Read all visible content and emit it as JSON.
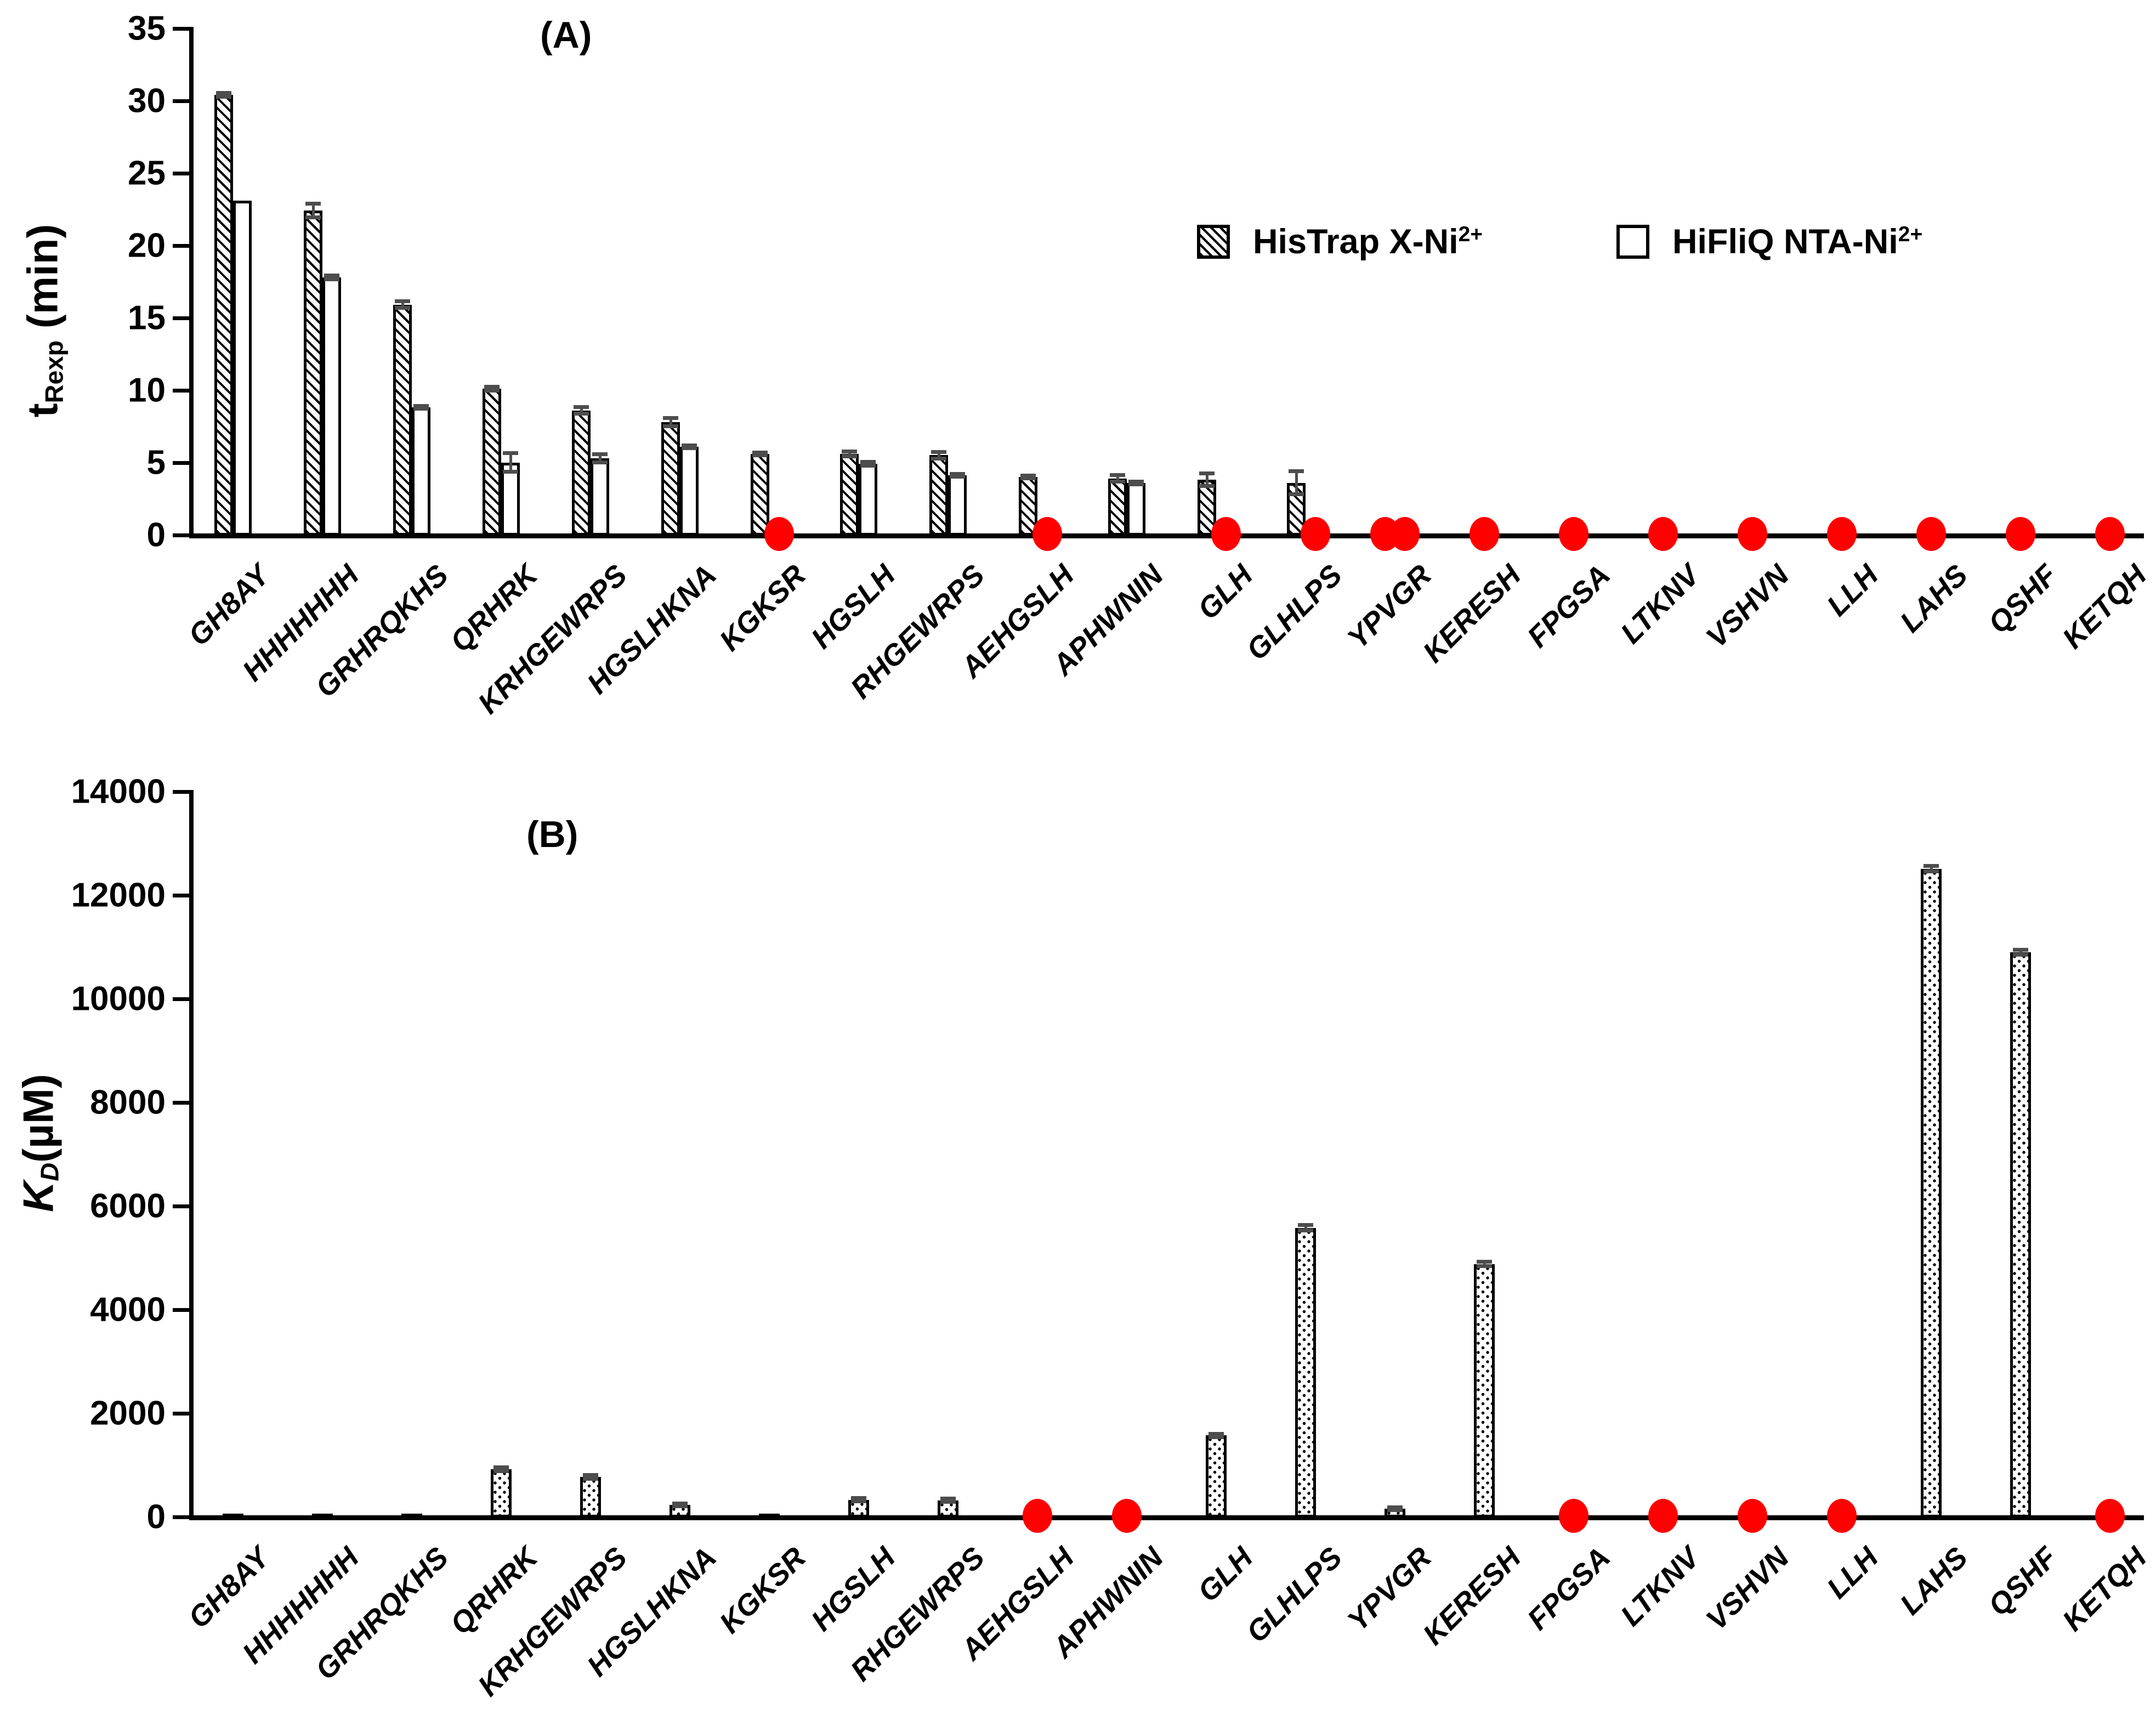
{
  "panel_a": {
    "title": "(A)",
    "y_axis": {
      "prefix": "t",
      "sub": "Rexp",
      "suffix": " (min)"
    }
  },
  "panel_b": {
    "title": "(B)",
    "y_axis": {
      "prefix": "K",
      "sub": "D",
      "suffix": "(µM)"
    }
  },
  "legend": {
    "items": [
      {
        "label": "HisTrap X-Ni",
        "sup": "2+",
        "pattern": "hatched"
      },
      {
        "label": "HiFliQ NTA-Ni",
        "sup": "2+",
        "pattern": "open"
      }
    ]
  },
  "colors": {
    "missing_marker": "#FF0000",
    "bar_border": "#000000",
    "error_bar": "#4d4d4d"
  },
  "chart_data": [
    {
      "type": "bar",
      "panel": "A",
      "title": "(A)",
      "ylabel": "t_Rexp (min)",
      "ylim": [
        0,
        35
      ],
      "yticks": [
        0,
        5,
        10,
        15,
        20,
        25,
        30,
        35
      ],
      "grid": false,
      "legend_position": "top-right",
      "categories": [
        "GH8AY",
        "HHHHHHH",
        "GRHRQKHS",
        "QRHRK",
        "KRHGEWRPS",
        "HGSLHKNA",
        "KGKSR",
        "HGSLH",
        "RHGEWRPS",
        "AEHGSLH",
        "APHWNIN",
        "GLH",
        "GLHLPS",
        "YPVGR",
        "KERESH",
        "FPGSA",
        "LTKNV",
        "VSHVN",
        "LLH",
        "LAHS",
        "QSHF",
        "KETQH"
      ],
      "series": [
        {
          "name": "HisTrap X-Ni2+",
          "values": [
            30.3,
            22.3,
            15.8,
            10.0,
            8.5,
            7.7,
            5.5,
            5.5,
            5.4,
            3.9,
            3.8,
            3.7,
            3.5,
            null,
            null,
            null,
            null,
            null,
            null,
            null,
            null,
            null
          ],
          "errors": [
            0.15,
            0.5,
            0.25,
            0.15,
            0.25,
            0.3,
            0.1,
            0.2,
            0.25,
            0.1,
            0.25,
            0.45,
            0.8,
            null,
            null,
            null,
            null,
            null,
            null,
            null,
            null,
            null
          ]
        },
        {
          "name": "HiFliQ NTA-Ni2+",
          "values": [
            23.0,
            17.7,
            8.7,
            4.9,
            5.2,
            6.0,
            null,
            4.8,
            4.0,
            null,
            3.5,
            null,
            null,
            null,
            null,
            null,
            null,
            null,
            null,
            null,
            null,
            null
          ],
          "errors": [
            null,
            0.15,
            0.1,
            0.65,
            0.3,
            0.1,
            null,
            0.15,
            0.1,
            null,
            0.1,
            null,
            null,
            null,
            null,
            null,
            null,
            null,
            null,
            null,
            null,
            null
          ]
        }
      ],
      "missing_marker_layout": [
        "none",
        "none",
        "none",
        "none",
        "none",
        "none",
        "right",
        "none",
        "none",
        "right",
        "none",
        "right",
        "right",
        "pair",
        "single",
        "single",
        "single",
        "single",
        "single",
        "single",
        "single",
        "single"
      ]
    },
    {
      "type": "bar",
      "panel": "B",
      "title": "(B)",
      "ylabel": "K_D (uM)",
      "ylim": [
        0,
        14000
      ],
      "yticks": [
        0,
        2000,
        4000,
        6000,
        8000,
        10000,
        12000,
        14000
      ],
      "grid": false,
      "categories": [
        "GH8AY",
        "HHHHHHH",
        "GRHRQKHS",
        "QRHRK",
        "KRHGEWRPS",
        "HGSLHKNA",
        "KGKSR",
        "HGSLH",
        "RHGEWRPS",
        "AEHGSLH",
        "APHWNIN",
        "GLH",
        "GLHLPS",
        "YPVGR",
        "KERESH",
        "FPGSA",
        "LTKNV",
        "VSHVN",
        "LLH",
        "LAHS",
        "QSHF",
        "KETQH"
      ],
      "series": [
        {
          "name": "HisTrap X-Ni2+",
          "values": [
            30,
            30,
            35,
            890,
            740,
            200,
            35,
            300,
            290,
            null,
            null,
            1540,
            5550,
            130,
            4850,
            null,
            null,
            null,
            null,
            12480,
            10870,
            null
          ],
          "errors": [
            null,
            null,
            null,
            40,
            40,
            35,
            null,
            35,
            35,
            null,
            null,
            40,
            60,
            25,
            50,
            null,
            null,
            null,
            null,
            60,
            50,
            null
          ]
        }
      ],
      "missing_marker_layout": [
        "none",
        "none",
        "none",
        "none",
        "none",
        "none",
        "none",
        "none",
        "none",
        "single",
        "single",
        "none",
        "none",
        "none",
        "none",
        "single",
        "single",
        "single",
        "single",
        "none",
        "none",
        "single"
      ]
    }
  ]
}
